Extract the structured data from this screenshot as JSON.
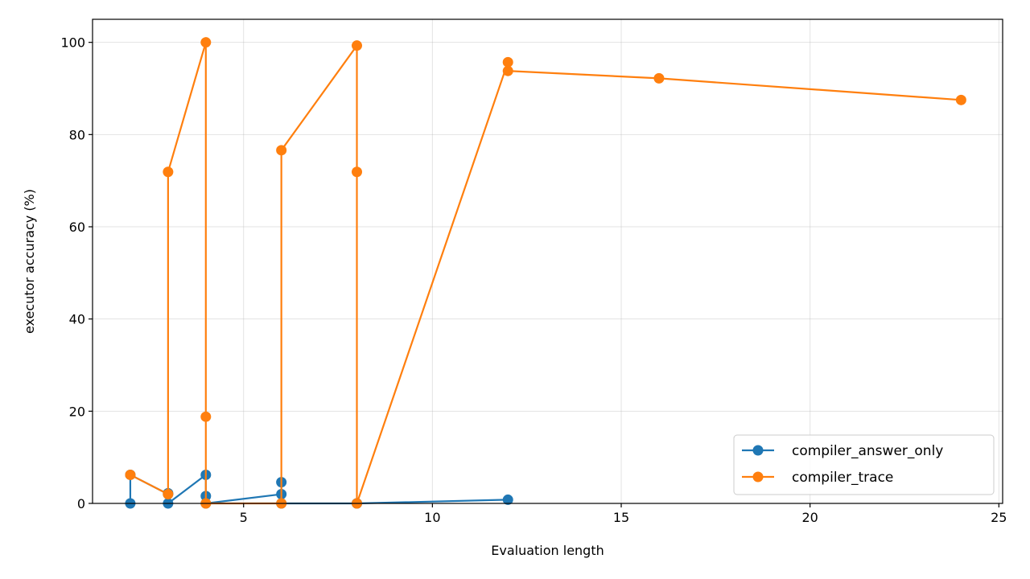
{
  "chart_data": {
    "type": "line",
    "xlabel": "Evaluation length",
    "ylabel": "executor accuracy (%)",
    "xlim": [
      1.0,
      25.1
    ],
    "ylim": [
      0,
      105
    ],
    "xticks": [
      5,
      10,
      15,
      20,
      25
    ],
    "yticks": [
      0,
      20,
      40,
      60,
      80,
      100
    ],
    "grid": true,
    "legend_position": "lower-right",
    "series": [
      {
        "name": "compiler_answer_only",
        "color": "#1f77b4",
        "x": [
          2,
          2,
          3,
          3,
          3,
          4,
          4,
          4,
          6,
          6,
          6,
          8,
          8,
          12
        ],
        "y": [
          0.0,
          6.2,
          2.0,
          2.2,
          0.0,
          6.2,
          1.6,
          0.0,
          2.0,
          4.6,
          0.0,
          0.0,
          0.0,
          0.8
        ]
      },
      {
        "name": "compiler_trace",
        "color": "#ff7f0e",
        "x": [
          2,
          3,
          3,
          4,
          4,
          4,
          6,
          6,
          8,
          8,
          8,
          12,
          12,
          16,
          24
        ],
        "y": [
          6.2,
          2.0,
          71.9,
          100.0,
          18.8,
          0.0,
          0.0,
          76.6,
          99.3,
          71.9,
          0.0,
          95.7,
          93.8,
          92.2,
          87.5
        ]
      }
    ]
  }
}
